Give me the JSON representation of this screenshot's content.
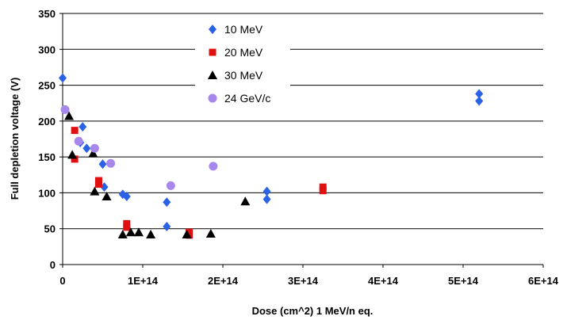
{
  "chart_data": {
    "type": "scatter",
    "xlabel": "Dose (cm^2) 1 MeV/n eq.",
    "ylabel": "Full depletion voltage (V)",
    "xlim": [
      0,
      600000000000000.0
    ],
    "ylim": [
      0,
      350
    ],
    "xticks": [
      0,
      100000000000000.0,
      200000000000000.0,
      300000000000000.0,
      400000000000000.0,
      500000000000000.0,
      600000000000000.0
    ],
    "xtick_labels": [
      "0",
      "1E+14",
      "2E+14",
      "3E+14",
      "4E+14",
      "5E+14",
      "6E+14"
    ],
    "yticks": [
      0,
      50,
      100,
      150,
      200,
      250,
      300,
      350
    ],
    "ytick_labels": [
      "0",
      "50",
      "100",
      "150",
      "200",
      "250",
      "300",
      "350"
    ],
    "grid": "horizontal",
    "legend_position": "top-center",
    "series": [
      {
        "name": "10 MeV",
        "marker": "diamond",
        "color": "#2a62e6",
        "points": [
          [
            0,
            260
          ],
          [
            25000000000000.0,
            192
          ],
          [
            22000000000000.0,
            170
          ],
          [
            30000000000000.0,
            162
          ],
          [
            50000000000000.0,
            140
          ],
          [
            52000000000000.0,
            108
          ],
          [
            75000000000000.0,
            98
          ],
          [
            80000000000000.0,
            95
          ],
          [
            130000000000000.0,
            87
          ],
          [
            130000000000000.0,
            53
          ],
          [
            255000000000000.0,
            102
          ],
          [
            255000000000000.0,
            91
          ],
          [
            520000000000000.0,
            238
          ],
          [
            520000000000000.0,
            228
          ]
        ]
      },
      {
        "name": "20 MeV",
        "marker": "square",
        "color": "#e01010",
        "points": [
          [
            15000000000000.0,
            187
          ],
          [
            15000000000000.0,
            147
          ],
          [
            45000000000000.0,
            117
          ],
          [
            45000000000000.0,
            112
          ],
          [
            80000000000000.0,
            57
          ],
          [
            80000000000000.0,
            52
          ],
          [
            158000000000000.0,
            45
          ],
          [
            158000000000000.0,
            41
          ],
          [
            325000000000000.0,
            108
          ],
          [
            325000000000000.0,
            103
          ]
        ]
      },
      {
        "name": "30 MeV",
        "marker": "triangle",
        "color": "#000000",
        "points": [
          [
            8000000000000.0,
            207
          ],
          [
            12000000000000.0,
            153
          ],
          [
            38000000000000.0,
            155
          ],
          [
            40000000000000.0,
            102
          ],
          [
            55000000000000.0,
            95
          ],
          [
            75000000000000.0,
            42
          ],
          [
            85000000000000.0,
            45
          ],
          [
            95000000000000.0,
            45
          ],
          [
            110000000000000.0,
            42
          ],
          [
            155000000000000.0,
            42
          ],
          [
            185000000000000.0,
            43
          ],
          [
            228000000000000.0,
            88
          ]
        ]
      },
      {
        "name": "24 GeV/c",
        "marker": "circle",
        "color": "#a787ec",
        "points": [
          [
            3000000000000.0,
            216
          ],
          [
            20000000000000.0,
            172
          ],
          [
            40000000000000.0,
            162
          ],
          [
            60000000000000.0,
            141
          ],
          [
            135000000000000.0,
            110
          ],
          [
            188000000000000.0,
            137
          ]
        ]
      }
    ]
  }
}
